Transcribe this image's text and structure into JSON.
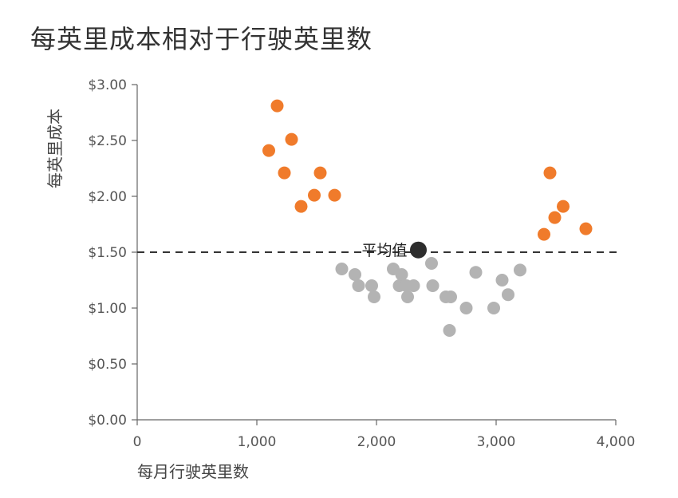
{
  "chart_data": {
    "type": "scatter",
    "title": "每英里成本相对于行驶英里数",
    "xlabel": "每月行驶英里数",
    "ylabel": "每英里成本",
    "xlim": [
      0,
      4000
    ],
    "ylim": [
      0,
      3.0
    ],
    "x_ticks": [
      0,
      1000,
      2000,
      3000,
      4000
    ],
    "x_tick_labels": [
      "0",
      "1,000",
      "2,000",
      "3,000",
      "4,000"
    ],
    "y_ticks": [
      0,
      0.5,
      1.0,
      1.5,
      2.0,
      2.5,
      3.0
    ],
    "y_tick_labels": [
      "$0.00",
      "$0.50",
      "$1.00",
      "$1.50",
      "$2.00",
      "$2.50",
      "$3.00"
    ],
    "grid": false,
    "reference_line": {
      "y": 1.5,
      "style": "dashed",
      "color": "#333333"
    },
    "annotation": {
      "label": "平均值",
      "x": 2350,
      "y": 1.52,
      "color": "#2d2d2d"
    },
    "colors": {
      "high": "#f07b2b",
      "low": "#b3b3b3"
    },
    "series": [
      {
        "group": "high",
        "points": [
          [
            1100,
            2.41
          ],
          [
            1170,
            2.81
          ],
          [
            1230,
            2.21
          ],
          [
            1290,
            2.51
          ],
          [
            1370,
            1.91
          ],
          [
            1480,
            2.01
          ],
          [
            1530,
            2.21
          ],
          [
            1650,
            2.01
          ],
          [
            3400,
            1.66
          ],
          [
            3450,
            2.21
          ],
          [
            3490,
            1.81
          ],
          [
            3560,
            1.91
          ],
          [
            3750,
            1.71
          ]
        ]
      },
      {
        "group": "low",
        "points": [
          [
            1710,
            1.35
          ],
          [
            1820,
            1.3
          ],
          [
            1850,
            1.2
          ],
          [
            1960,
            1.2
          ],
          [
            1980,
            1.1
          ],
          [
            2140,
            1.35
          ],
          [
            2190,
            1.2
          ],
          [
            2210,
            1.3
          ],
          [
            2250,
            1.2
          ],
          [
            2260,
            1.1
          ],
          [
            2310,
            1.2
          ],
          [
            2460,
            1.4
          ],
          [
            2470,
            1.2
          ],
          [
            2580,
            1.1
          ],
          [
            2620,
            1.1
          ],
          [
            2610,
            0.8
          ],
          [
            2750,
            1.0
          ],
          [
            2830,
            1.32
          ],
          [
            2980,
            1.0
          ],
          [
            3050,
            1.25
          ],
          [
            3100,
            1.12
          ],
          [
            3200,
            1.34
          ]
        ]
      }
    ]
  }
}
